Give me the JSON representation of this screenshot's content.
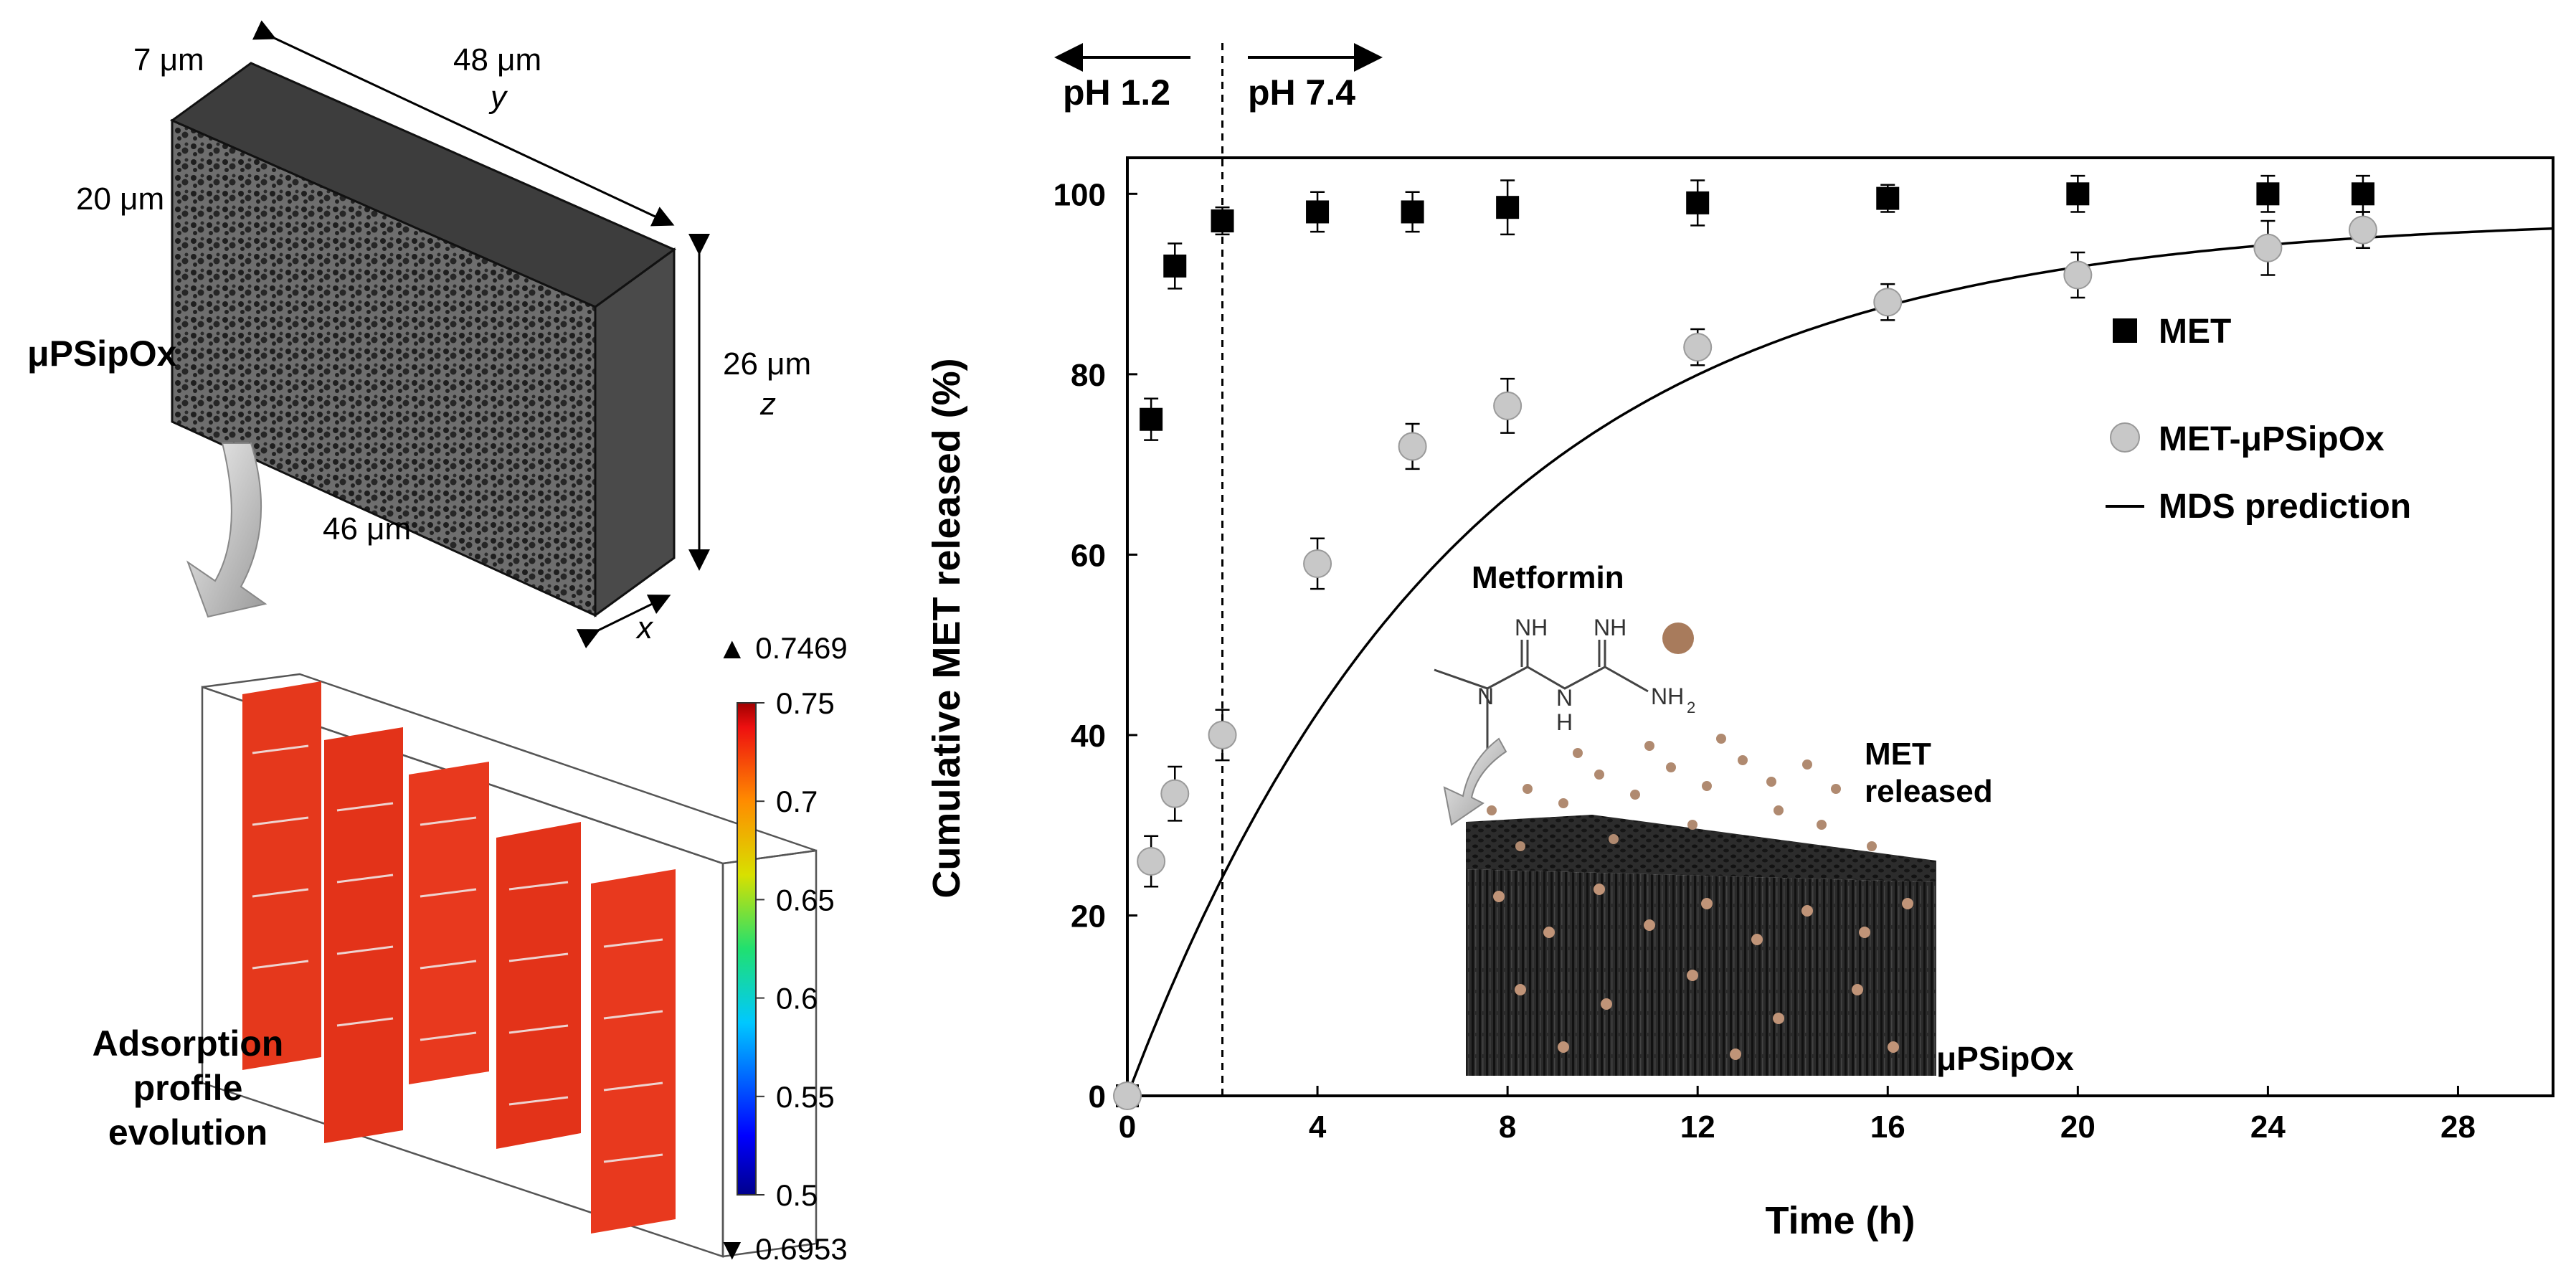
{
  "left_panel": {
    "slab_label": "μPSipOx",
    "dim_7": "7 μm",
    "dim_48": "48 μm",
    "axis_y": "y",
    "dim_20": "20 μm",
    "dim_26": "26 μm",
    "axis_z": "z",
    "dim_46": "46 μm",
    "axis_x": "x",
    "caption": [
      "Adsorption",
      "profile",
      "evolution"
    ],
    "colorbar": {
      "max_marker": "▲ 0.7469",
      "min_marker": "▼ 0.6953",
      "ticks": [
        "0.75",
        "0.7",
        "0.65",
        "0.6",
        "0.55",
        "0.5"
      ],
      "tick_values": [
        0.75,
        0.7,
        0.65,
        0.6,
        0.55,
        0.5
      ],
      "range": [
        0.5,
        0.75
      ]
    },
    "colors": {
      "slab_top": "#3a3a3a",
      "slab_side": "#555555",
      "surface": "#e8321a"
    }
  },
  "ph_labels": {
    "acid": "pH 1.2",
    "neutral": "pH 7.4"
  },
  "inset": {
    "molecule_title": "Metformin",
    "nh_left": "NH",
    "nh_right": "NH",
    "n_left": "N",
    "h_center": "H",
    "n_center": "N",
    "h_right": "N",
    "nh2": "NH",
    "nh2_sub": "2",
    "released_line1": "MET",
    "released_line2": "released",
    "material_label": "μPSipOx"
  },
  "chart_data": {
    "type": "scatter",
    "title": "",
    "xlabel": "Time (h)",
    "ylabel": "Cumulative MET released (%)",
    "xlim": [
      0,
      30
    ],
    "ylim": [
      0,
      104
    ],
    "xticks": [
      0,
      4,
      8,
      12,
      16,
      20,
      24,
      28
    ],
    "yticks": [
      0,
      20,
      40,
      60,
      80,
      100
    ],
    "ph_switch_time": 2,
    "legend_position": "right",
    "series": [
      {
        "name": "MET",
        "marker": "square",
        "color": "#000000",
        "x": [
          0,
          0.5,
          1,
          2,
          4,
          6,
          8,
          12,
          16,
          20,
          24,
          26
        ],
        "y": [
          0,
          75,
          92,
          97,
          98,
          98,
          98.5,
          99,
          99.5,
          100,
          100,
          100
        ],
        "err": [
          0.5,
          2.3,
          2.5,
          1.5,
          2.2,
          2.2,
          3,
          2.5,
          1.5,
          2,
          2,
          2
        ]
      },
      {
        "name": "MET-μPSipOx",
        "marker": "circle",
        "color": "#c8c8c8",
        "x": [
          0,
          0.5,
          1,
          2,
          4,
          6,
          8,
          12,
          16,
          20,
          24,
          26
        ],
        "y": [
          0,
          26,
          33.5,
          40,
          59,
          72,
          76.5,
          83,
          88,
          91,
          94,
          96
        ],
        "err": [
          0.5,
          2.8,
          3,
          2.8,
          2.8,
          2.5,
          3,
          2,
          2,
          2.5,
          3,
          2
        ]
      },
      {
        "name": "MDS prediction",
        "type": "line",
        "color": "#000000",
        "model": "y = 97.5 * (1 - exp(-t / 7))",
        "amplitude": 97.5,
        "tau": 7
      }
    ]
  }
}
